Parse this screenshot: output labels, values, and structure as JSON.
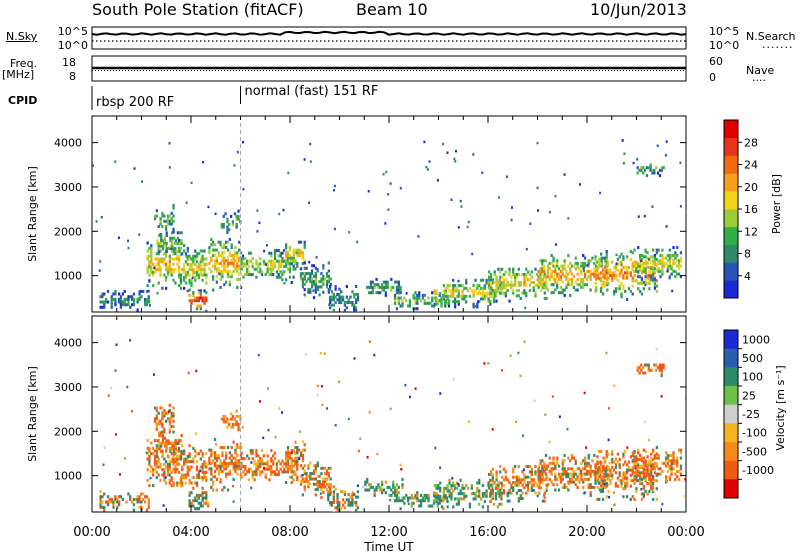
{
  "header": {
    "station": "South Pole Station (fitACF)",
    "beam": "Beam 10",
    "date": "10/Jun/2013"
  },
  "top_panels": {
    "nsky_label": "N.Sky",
    "nsearch_label": "N.Search",
    "freq_label_top": "Freq.",
    "freq_label_unit": "[MHz]",
    "nave_label": "Nave",
    "cpid_label": "CPID",
    "left_ticks_noise": [
      "10^5",
      "10^0"
    ],
    "right_ticks_noise": [
      "10^5",
      "10^0"
    ],
    "left_ticks_freq": [
      "18",
      "8"
    ],
    "right_ticks_freq": [
      "60",
      "0"
    ],
    "cpid_segments": [
      {
        "start_hour": 0,
        "label": "rbsp 200 RF"
      },
      {
        "start_hour": 6,
        "label": "normal (fast) 151 RF"
      }
    ]
  },
  "colors": {
    "power": [
      "#1a2bd6",
      "#2a55b8",
      "#2f8a6a",
      "#2fae4a",
      "#9ccc3a",
      "#f2d21c",
      "#f5a11a",
      "#f06a12",
      "#e8341a",
      "#e00000"
    ],
    "velocity": [
      "#e00000",
      "#f05a14",
      "#f58a1c",
      "#f5b420",
      "#cfcfcf",
      "#6fc04a",
      "#2f8a6a",
      "#2a5fb0",
      "#1a2bd6"
    ]
  },
  "chart_data": [
    {
      "type": "heatmap",
      "name": "power",
      "ylabel": "Slant Range [km]",
      "ylim": [
        180,
        4600
      ],
      "yticks": [
        "1000",
        "2000",
        "3000",
        "4000"
      ],
      "xlim": [
        0,
        24
      ],
      "colorbar_label": "Power [dB]",
      "colorbar_ticks": [
        "4",
        "8",
        "12",
        "16",
        "20",
        "24",
        "28"
      ],
      "colorbar_range": [
        0,
        32
      ]
    },
    {
      "type": "heatmap",
      "name": "velocity",
      "ylabel": "Slant Range [km]",
      "ylim": [
        180,
        4600
      ],
      "yticks": [
        "1000",
        "2000",
        "3000",
        "4000"
      ],
      "xlim": [
        0,
        24
      ],
      "xlabel": "Time UT",
      "xticks": [
        "00:00",
        "04:00",
        "08:00",
        "12:00",
        "16:00",
        "20:00",
        "00:00"
      ],
      "colorbar_label": "Velocity [m s⁻¹]",
      "colorbar_ticks": [
        "1000",
        "500",
        "100",
        "25",
        "-25",
        "-100",
        "-500",
        "-1000"
      ]
    }
  ]
}
